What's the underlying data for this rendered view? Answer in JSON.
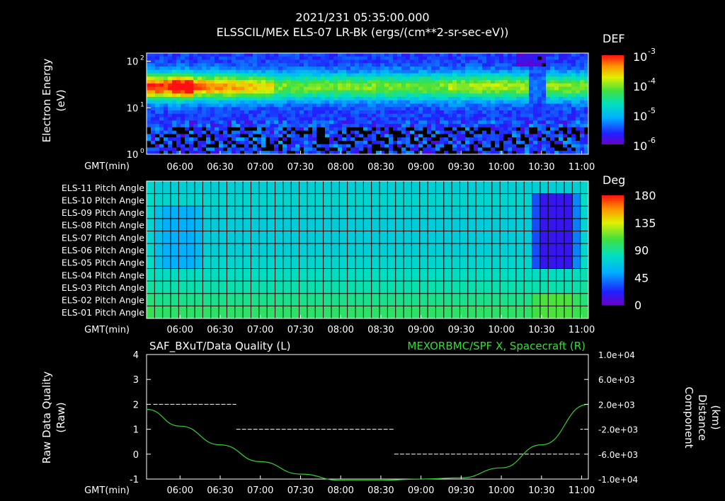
{
  "header": {
    "timestamp": "2021/231 05:35:00.000",
    "title": "ELSSCIL/MEx ELS-07 LR-Bk  (ergs/(cm**2-sr-sec-eV))"
  },
  "time_axis": {
    "label": "GMT(min)",
    "ticks": [
      "06:00",
      "06:30",
      "07:00",
      "07:30",
      "08:00",
      "08:30",
      "09:00",
      "09:30",
      "10:00",
      "10:30",
      "11:00"
    ]
  },
  "colors": {
    "dq_line": "#ffffff",
    "spf_line": "#30d030",
    "right_title": "#30e030"
  },
  "chart_data": [
    {
      "type": "heatmap",
      "name": "energy_spectrogram",
      "ylabel": "Electron Energy (eV)",
      "ylabel_lines": [
        "Electron Energy",
        "(eV)"
      ],
      "y_scale": "log",
      "ylim": [
        1,
        150
      ],
      "y_ticks": [
        {
          "value": 1,
          "base": "10",
          "exp": "0"
        },
        {
          "value": 10,
          "base": "10",
          "exp": "1"
        },
        {
          "value": 100,
          "base": "10",
          "exp": "2"
        }
      ],
      "xlim_minutes": [
        335,
        665
      ],
      "colorbar": {
        "title": "DEF",
        "scale": "log",
        "range": [
          1e-06,
          0.001
        ],
        "ticks": [
          {
            "value": 0.001,
            "base": "10",
            "exp": "-3"
          },
          {
            "value": 0.0001,
            "base": "10",
            "exp": "-4"
          },
          {
            "value": 1e-05,
            "base": "10",
            "exp": "-5"
          },
          {
            "value": 1e-06,
            "base": "10",
            "exp": "-6"
          }
        ]
      }
    },
    {
      "type": "heatmap",
      "name": "pitch_angle",
      "rows": [
        "ELS-11 Pitch Angle",
        "ELS-10 Pitch Angle",
        "ELS-09 Pitch Angle",
        "ELS-08 Pitch Angle",
        "ELS-07 Pitch Angle",
        "ELS-06 Pitch Angle",
        "ELS-05 Pitch Angle",
        "ELS-04 Pitch Angle",
        "ELS-03 Pitch Angle",
        "ELS-02 Pitch Angle",
        "ELS-01 Pitch Angle"
      ],
      "xlim_minutes": [
        335,
        665
      ],
      "baseline_deg": [
        72,
        75,
        72,
        70,
        70,
        72,
        75,
        80,
        85,
        92,
        100
      ],
      "features": [
        {
          "t_start": 344,
          "t_end": 376,
          "rows": [
            2,
            3,
            4,
            5,
            6
          ],
          "value_deg": 55
        },
        {
          "t_start": 624,
          "t_end": 656,
          "rows": [
            1,
            2,
            3,
            4,
            5,
            6
          ],
          "value_deg": 15
        },
        {
          "t_start": 624,
          "t_end": 656,
          "rows": [
            9,
            10
          ],
          "value_deg": 110
        }
      ],
      "colorbar": {
        "title": "Deg",
        "range": [
          0,
          180
        ],
        "ticks": [
          "180",
          "135",
          "90",
          "45",
          "0"
        ]
      }
    },
    {
      "type": "line",
      "name": "data_quality_and_component",
      "title_left": "SAF_BXuT/Data Quality (L)",
      "title_right": "MEXORBMC/SPF X, Spacecraft (R)",
      "ylabel_left": [
        "Raw Data Quality",
        "(Raw)"
      ],
      "ylabel_right": [
        "Component",
        "Distance",
        "(km)"
      ],
      "ylim_left": [
        -1,
        4
      ],
      "yticks_left": [
        "4",
        "3",
        "2",
        "1",
        "0",
        "-1"
      ],
      "ylim_right": [
        -10000,
        10000
      ],
      "yticks_right": [
        "1.0e+04",
        "6.0e+03",
        "2.0e+03",
        "-2.0e+03",
        "-6.0e+03",
        "-1.0e+04"
      ],
      "xlim_minutes": [
        335,
        665
      ],
      "series": [
        {
          "name": "Raw Data Quality",
          "axis": "left",
          "style": "dashed",
          "segments": [
            {
              "t_start": 340,
              "t_end": 402,
              "value": 2
            },
            {
              "t_start": 402,
              "t_end": 520,
              "value": 1
            },
            {
              "t_start": 520,
              "t_end": 659,
              "value": 0
            },
            {
              "t_start": 659,
              "t_end": 661,
              "value": 1
            }
          ]
        },
        {
          "name": "SPF X, Spacecraft",
          "axis": "right",
          "t": [
            335,
            360,
            390,
            420,
            450,
            480,
            510,
            540,
            570,
            600,
            630,
            665
          ],
          "values": [
            1200,
            -1500,
            -4500,
            -7200,
            -9200,
            -10200,
            -10200,
            -10000,
            -9800,
            -8200,
            -4500,
            2000
          ]
        }
      ]
    }
  ]
}
